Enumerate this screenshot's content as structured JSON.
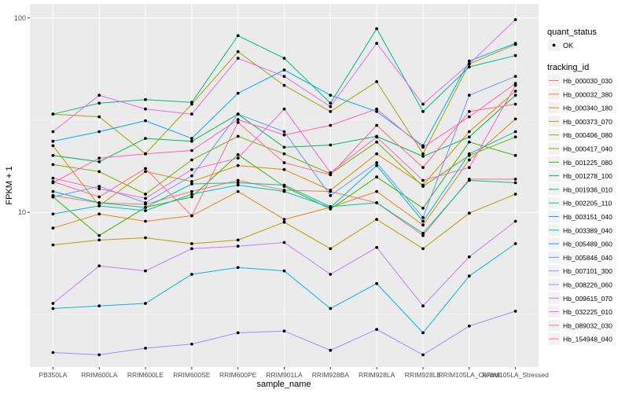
{
  "chart_data": {
    "type": "line",
    "xlabel": "sample_name",
    "ylabel": "FPKM + 1",
    "y_scale": "log10",
    "ylim": [
      1.6,
      118
    ],
    "y_ticks": [
      {
        "value": 10,
        "label": "10"
      },
      {
        "value": 100,
        "label": "100"
      }
    ],
    "categories": [
      "PB350LA",
      "RRIM600LA",
      "RRIM600LE",
      "RRIM600SE",
      "RRIM600PE",
      "RRIM901LA",
      "RRIM928BA",
      "RRIM928LA",
      "RRIM928LE",
      "RRIM105LA_Control",
      "RRIM105LA_Stressed"
    ],
    "grid": true,
    "legend_placement": "right",
    "point_legend": {
      "title": "quant_status",
      "label": "OK"
    },
    "legend_title": "tracking_id",
    "series": [
      {
        "name": "Hb_000030_030",
        "color": "#f8766d",
        "values": [
          12.2,
          11.2,
          11.0,
          12.8,
          14.6,
          13.0,
          12.8,
          11.2,
          7.6,
          14.8,
          14.8
        ]
      },
      {
        "name": "Hb_000032_380",
        "color": "#e7861b",
        "values": [
          8.3,
          9.8,
          9.0,
          9.6,
          12.8,
          9.2,
          10.6,
          12.8,
          8.6,
          18.6,
          30.2
        ]
      },
      {
        "name": "Hb_000340_180",
        "color": "#d59000",
        "values": [
          22.0,
          10.8,
          16.2,
          14.4,
          17.4,
          16.6,
          13.0,
          20.0,
          13.8,
          26.0,
          42.0
        ]
      },
      {
        "name": "Hb_000373_070",
        "color": "#bf9b00",
        "values": [
          6.8,
          7.2,
          7.4,
          6.9,
          7.2,
          8.9,
          6.5,
          9.2,
          6.5,
          9.9,
          12.4
        ]
      },
      {
        "name": "Hb_000406_080",
        "color": "#a3a500",
        "values": [
          32.0,
          31.0,
          20.0,
          36.0,
          67.0,
          45.0,
          33.0,
          47.0,
          20.0,
          58.0,
          73.0
        ]
      },
      {
        "name": "Hb_000417_040",
        "color": "#7cae00",
        "values": [
          17.6,
          16.2,
          12.4,
          18.6,
          24.6,
          20.0,
          15.8,
          23.0,
          13.6,
          19.6,
          24.4
        ]
      },
      {
        "name": "Hb_001225_080",
        "color": "#39b600",
        "values": [
          12.0,
          7.6,
          10.6,
          12.0,
          19.8,
          13.6,
          10.4,
          15.2,
          10.5,
          23.0,
          19.6
        ]
      },
      {
        "name": "Hb_001278_100",
        "color": "#00bb4e",
        "values": [
          19.6,
          18.2,
          24.0,
          23.2,
          32.0,
          21.6,
          22.2,
          24.6,
          19.4,
          24.4,
          40.0
        ]
      },
      {
        "name": "Hb_001936_010",
        "color": "#00bf7d",
        "values": [
          32.0,
          36.4,
          38.0,
          36.8,
          81.0,
          62.0,
          36.4,
          88.0,
          33.0,
          56.0,
          64.0
        ]
      },
      {
        "name": "Hb_002205_110",
        "color": "#00c1a3",
        "values": [
          12.8,
          11.2,
          10.6,
          14.0,
          14.2,
          13.8,
          10.7,
          11.2,
          7.8,
          14.6,
          14.2
        ]
      },
      {
        "name": "Hb_003151_040",
        "color": "#00bfc4",
        "values": [
          9.8,
          10.8,
          10.2,
          12.4,
          13.8,
          12.8,
          10.6,
          17.4,
          9.0,
          20.0,
          26.0
        ]
      },
      {
        "name": "Hb_003389_040",
        "color": "#00b8e5",
        "values": [
          3.2,
          3.3,
          3.4,
          4.8,
          5.2,
          5.0,
          3.2,
          4.3,
          2.4,
          4.7,
          6.9
        ]
      },
      {
        "name": "Hb_005489_060",
        "color": "#00a9ff",
        "values": [
          23.2,
          26.0,
          29.6,
          24.0,
          41.0,
          54.0,
          40.0,
          33.0,
          22.0,
          60.0,
          74.0
        ]
      },
      {
        "name": "Hb_005846_040",
        "color": "#619cff",
        "values": [
          12.0,
          13.6,
          11.2,
          15.4,
          32.0,
          26.0,
          12.2,
          18.0,
          9.4,
          40.0,
          50.0
        ]
      },
      {
        "name": "Hb_007101_300",
        "color": "#a58aff",
        "values": [
          1.9,
          1.85,
          2.0,
          2.1,
          2.4,
          2.45,
          1.95,
          2.5,
          1.85,
          2.6,
          3.1
        ]
      },
      {
        "name": "Hb_008226_060",
        "color": "#c77cff",
        "values": [
          3.4,
          5.3,
          5.0,
          6.5,
          6.7,
          7.0,
          4.8,
          6.6,
          3.3,
          5.9,
          9.0
        ]
      },
      {
        "name": "Hb_009615_070",
        "color": "#e76bf3",
        "values": [
          26.0,
          40.0,
          34.0,
          32.0,
          62.0,
          50.0,
          35.0,
          74.0,
          36.0,
          58.0,
          98.0
        ]
      },
      {
        "name": "Hb_032225_010",
        "color": "#fa62db",
        "values": [
          15.0,
          13.2,
          11.8,
          16.6,
          19.0,
          34.0,
          16.0,
          24.4,
          14.6,
          17.0,
          45.0
        ]
      },
      {
        "name": "Hb_089032_030",
        "color": "#ff62bc",
        "values": [
          14.2,
          19.0,
          20.0,
          20.8,
          30.0,
          25.0,
          28.0,
          34.0,
          21.6,
          31.0,
          46.0
        ]
      },
      {
        "name": "Hb_154948_040",
        "color": "#ff6c91",
        "values": [
          14.4,
          12.0,
          16.8,
          9.6,
          29.0,
          18.0,
          15.6,
          28.0,
          17.0,
          33.0,
          36.0
        ]
      }
    ]
  }
}
